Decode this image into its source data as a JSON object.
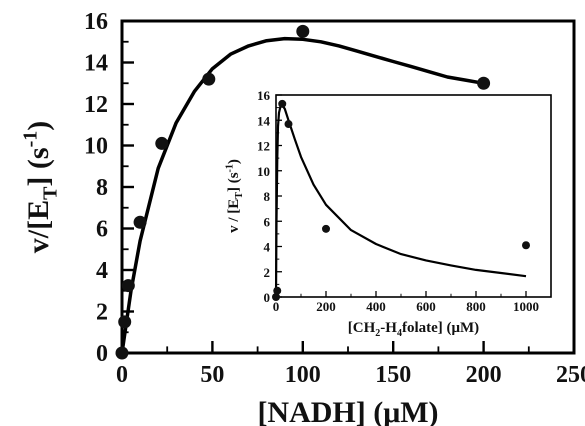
{
  "chart_data": [
    {
      "type": "scatter",
      "xlabel": "[NADH] (μM)",
      "ylabel": "v/[E_T] (s^-1)",
      "xlim": [
        0,
        250
      ],
      "ylim": [
        0,
        16
      ],
      "xticks": [
        "0",
        "50",
        "100",
        "150",
        "200",
        "250"
      ],
      "yticks": [
        "0",
        "2",
        "4",
        "6",
        "8",
        "10",
        "12",
        "14",
        "16"
      ],
      "grid": false,
      "series": [
        {
          "x": [
            0,
            1.5,
            3.5,
            10,
            22,
            48,
            100,
            200
          ],
          "y": [
            0,
            1.5,
            3.25,
            6.3,
            10.1,
            13.2,
            15.5,
            13.0
          ]
        },
        {
          "style": "fit-line",
          "x": [
            0,
            5,
            10,
            20,
            30,
            40,
            50,
            60,
            70,
            80,
            90,
            100,
            110,
            120,
            130,
            140,
            150,
            160,
            170,
            180,
            190,
            200
          ],
          "y": [
            0,
            3.0,
            5.4,
            8.9,
            11.1,
            12.6,
            13.7,
            14.4,
            14.8,
            15.05,
            15.15,
            15.12,
            15.0,
            14.8,
            14.55,
            14.3,
            14.05,
            13.8,
            13.55,
            13.3,
            13.15,
            13.0
          ]
        }
      ]
    },
    {
      "type": "scatter",
      "position": "inset",
      "xlabel": "[CH2-H4folate] (μM)",
      "ylabel": "v / [E_T] (s^-1)",
      "xlim": [
        0,
        1100
      ],
      "ylim": [
        0,
        16
      ],
      "xticks": [
        "0",
        "200",
        "400",
        "600",
        "800",
        "1000"
      ],
      "yticks": [
        "0",
        "2",
        "4",
        "6",
        "8",
        "10",
        "12",
        "14",
        "16"
      ],
      "grid": false,
      "series": [
        {
          "x": [
            0,
            5,
            25,
            50,
            200,
            1000
          ],
          "y": [
            0,
            0.5,
            15.3,
            13.7,
            5.4,
            4.1
          ]
        },
        {
          "style": "fit-line",
          "x": [
            0,
            2,
            5,
            8,
            12,
            18,
            25,
            35,
            50,
            75,
            100,
            150,
            200,
            300,
            400,
            500,
            600,
            700,
            800,
            900,
            1000
          ],
          "y": [
            0,
            6,
            11,
            13.5,
            14.6,
            15.1,
            15.2,
            14.9,
            14.0,
            12.5,
            11.1,
            8.9,
            7.3,
            5.3,
            4.2,
            3.4,
            2.9,
            2.5,
            2.15,
            1.9,
            1.65
          ]
        }
      ]
    }
  ]
}
